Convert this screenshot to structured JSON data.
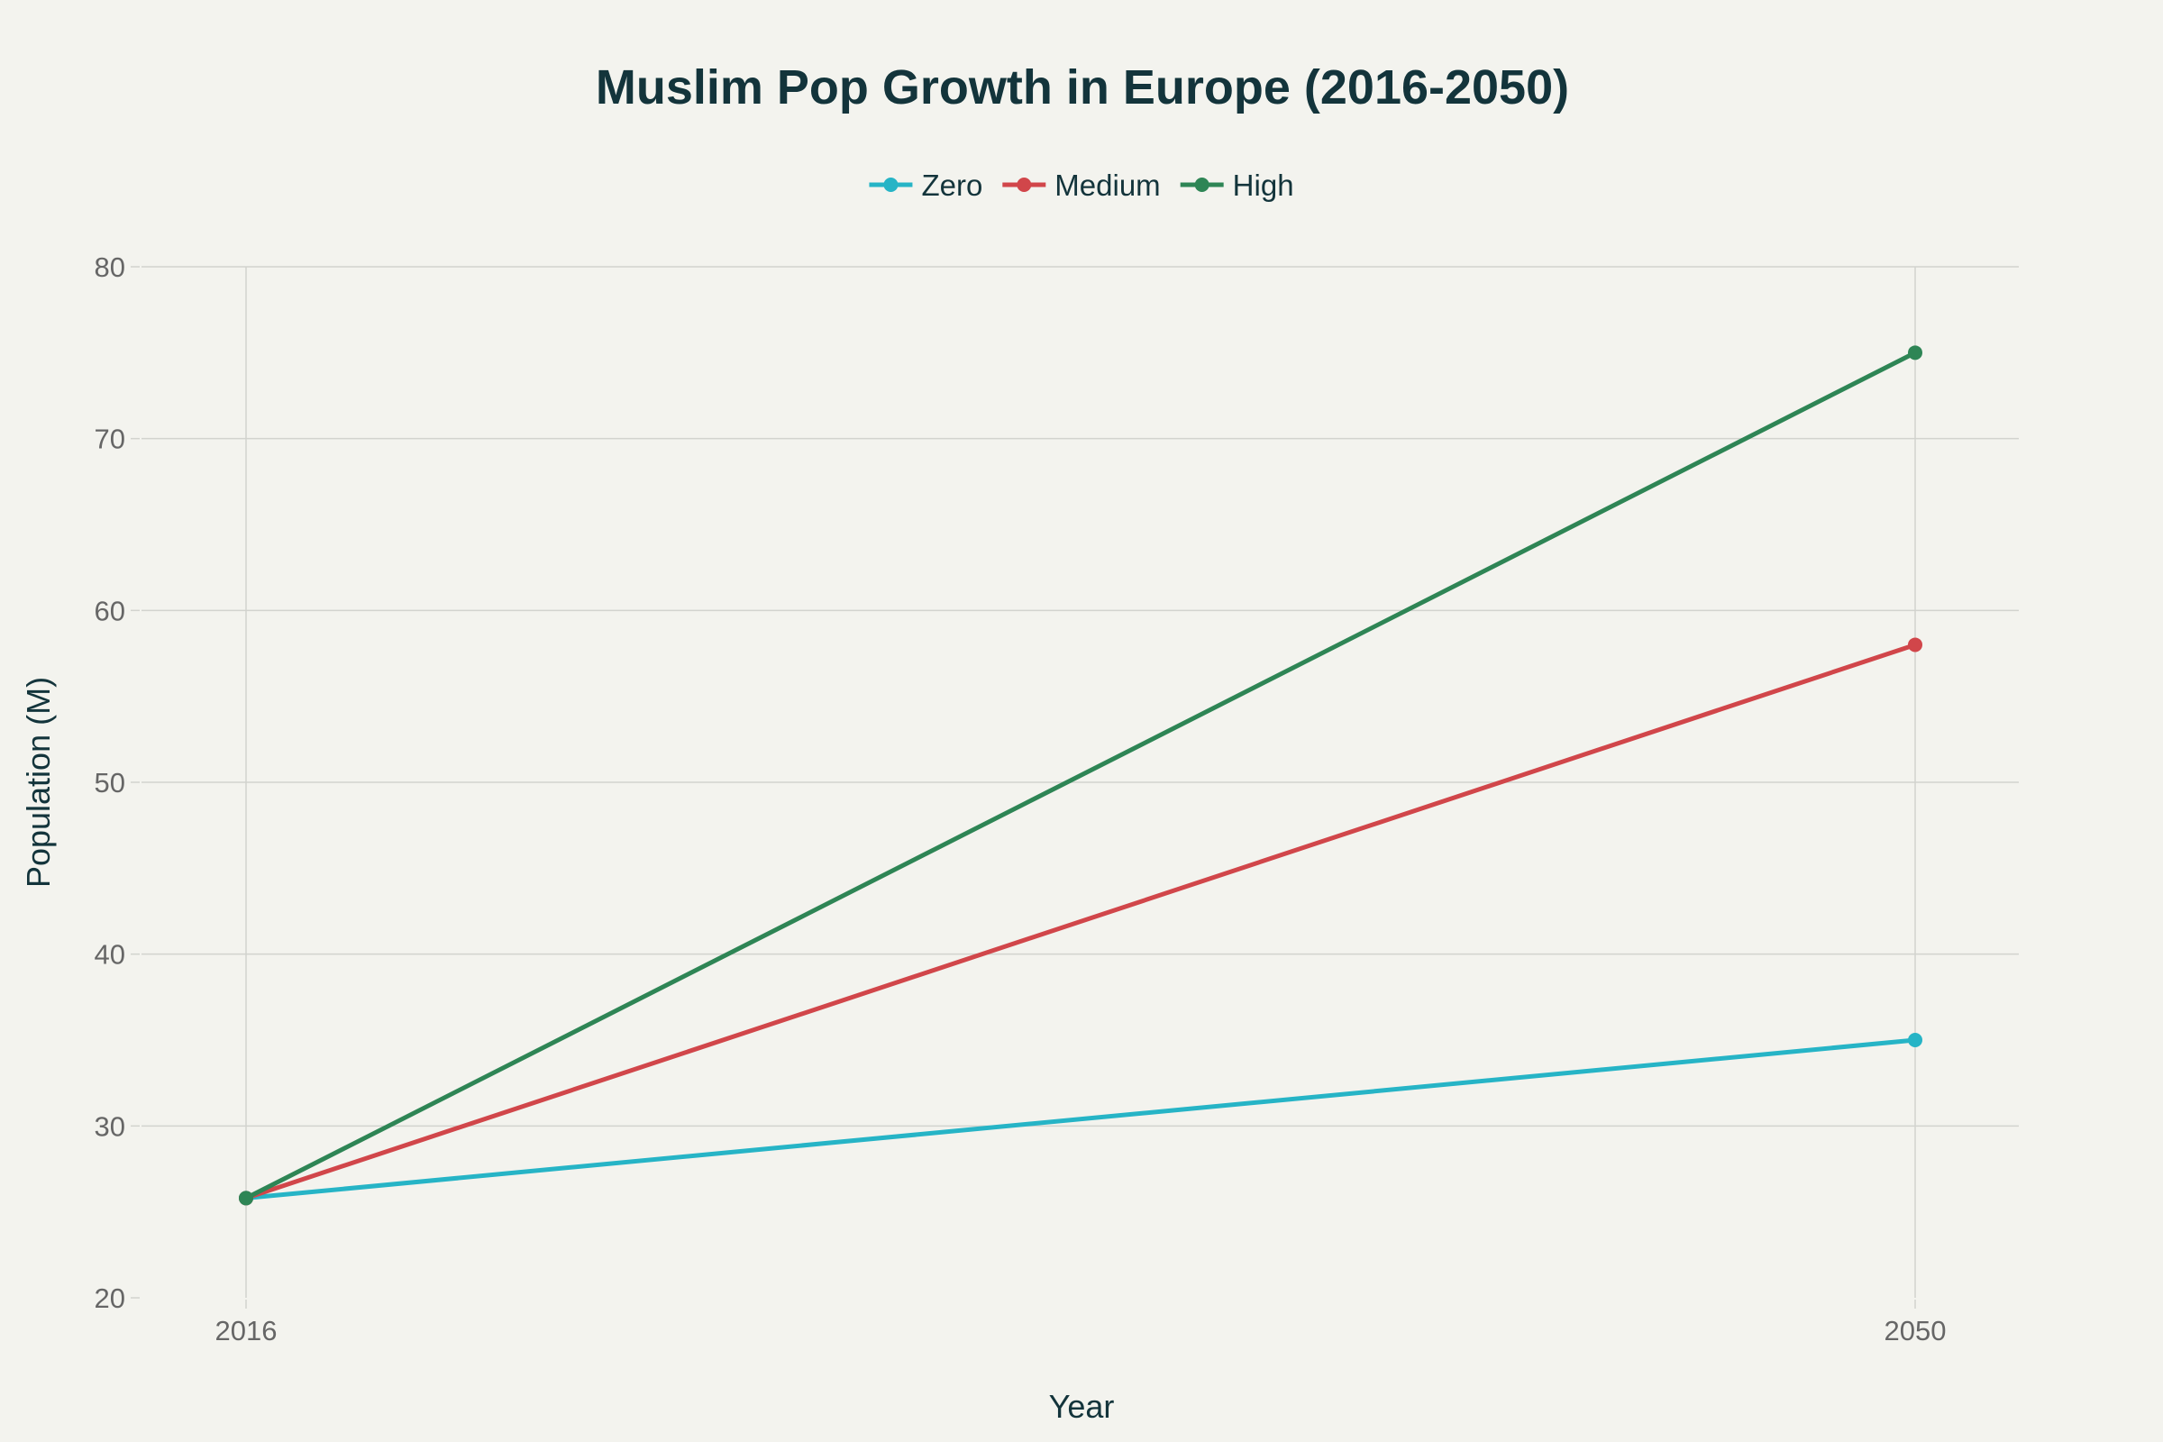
{
  "chart_data": {
    "type": "line",
    "title": "Muslim Pop Growth in Europe (2016-2050)",
    "xlabel": "Year",
    "ylabel": "Population (M)",
    "x": [
      2016,
      2050
    ],
    "x_tick_labels": [
      "2016",
      "2050"
    ],
    "y_ticks": [
      20,
      30,
      40,
      50,
      60,
      70,
      80
    ],
    "y_tick_labels": [
      "20",
      "30",
      "40",
      "50",
      "60",
      "70",
      "80"
    ],
    "ylim": [
      20,
      80
    ],
    "grid": true,
    "legend_position": "top-center",
    "series": [
      {
        "name": "Zero",
        "color": "#26b4c6",
        "values": [
          25.8,
          35.0
        ]
      },
      {
        "name": "Medium",
        "color": "#d1464a",
        "values": [
          25.8,
          58.0
        ]
      },
      {
        "name": "High",
        "color": "#2e8555",
        "values": [
          25.8,
          75.0
        ]
      }
    ]
  }
}
